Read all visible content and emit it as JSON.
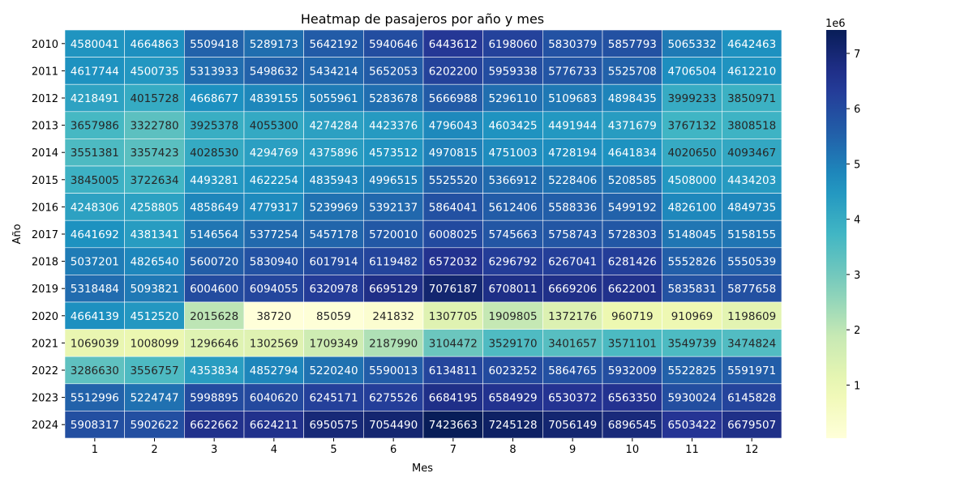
{
  "chart_data": {
    "type": "heatmap",
    "title": "Heatmap de pasajeros por año y mes",
    "xlabel": "Mes",
    "ylabel": "Año",
    "x_categories": [
      "1",
      "2",
      "3",
      "4",
      "5",
      "6",
      "7",
      "8",
      "9",
      "10",
      "11",
      "12"
    ],
    "y_categories": [
      "2010",
      "2011",
      "2012",
      "2013",
      "2014",
      "2015",
      "2016",
      "2017",
      "2018",
      "2019",
      "2020",
      "2021",
      "2022",
      "2023",
      "2024"
    ],
    "values": [
      [
        4580041,
        4664863,
        5509418,
        5289173,
        5642192,
        5940646,
        6443612,
        6198060,
        5830379,
        5857793,
        5065332,
        4642463
      ],
      [
        4617744,
        4500735,
        5313933,
        5498632,
        5434214,
        5652053,
        6202200,
        5959338,
        5776733,
        5525708,
        4706504,
        4612210
      ],
      [
        4218491,
        4015728,
        4668677,
        4839155,
        5055961,
        5283678,
        5666988,
        5296110,
        5109683,
        4898435,
        3999233,
        3850971
      ],
      [
        3657986,
        3322780,
        3925378,
        4055300,
        4274284,
        4423376,
        4796043,
        4603425,
        4491944,
        4371679,
        3767132,
        3808518
      ],
      [
        3551381,
        3357423,
        4028530,
        4294769,
        4375896,
        4573512,
        4970815,
        4751003,
        4728194,
        4641834,
        4020650,
        4093467
      ],
      [
        3845005,
        3722634,
        4493281,
        4622254,
        4835943,
        4996515,
        5525520,
        5366912,
        5228406,
        5208585,
        4508000,
        4434203
      ],
      [
        4248306,
        4258805,
        4858649,
        4779317,
        5239969,
        5392137,
        5864041,
        5612406,
        5588336,
        5499192,
        4826100,
        4849735
      ],
      [
        4641692,
        4381341,
        5146564,
        5377254,
        5457178,
        5720010,
        6008025,
        5745663,
        5758743,
        5728303,
        5148045,
        5158155
      ],
      [
        5037201,
        4826540,
        5600720,
        5830940,
        6017914,
        6119482,
        6572032,
        6296792,
        6267041,
        6281426,
        5552826,
        5550539
      ],
      [
        5318484,
        5093821,
        6004600,
        6094055,
        6320978,
        6695129,
        7076187,
        6708011,
        6669206,
        6622001,
        5835831,
        5877658
      ],
      [
        4664139,
        4512520,
        2015628,
        38720,
        85059,
        241832,
        1307705,
        1909805,
        1372176,
        960719,
        910969,
        1198609
      ],
      [
        1069039,
        1008099,
        1296646,
        1302569,
        1709349,
        2187990,
        3104472,
        3529170,
        3401657,
        3571101,
        3549739,
        3474824
      ],
      [
        3286630,
        3556757,
        4353834,
        4852794,
        5220240,
        5590013,
        6134811,
        6023252,
        5864765,
        5932009,
        5522825,
        5591971
      ],
      [
        5512996,
        5224747,
        5998895,
        6040620,
        6245171,
        6275526,
        6684195,
        6584929,
        6530372,
        6563350,
        5930024,
        6145828
      ],
      [
        5908317,
        5902622,
        6622662,
        6624211,
        6950575,
        7054490,
        7423663,
        7245128,
        7056149,
        6896545,
        6503422,
        6679507
      ]
    ],
    "vmin": 38720,
    "vmax": 7423663,
    "colormap": "YlGnBu",
    "annotated": true,
    "colorbar": {
      "ticks": [
        1,
        2,
        3,
        4,
        5,
        6,
        7
      ],
      "offset_label": "1e6"
    },
    "grid": false,
    "legend": "colorbar-right"
  }
}
